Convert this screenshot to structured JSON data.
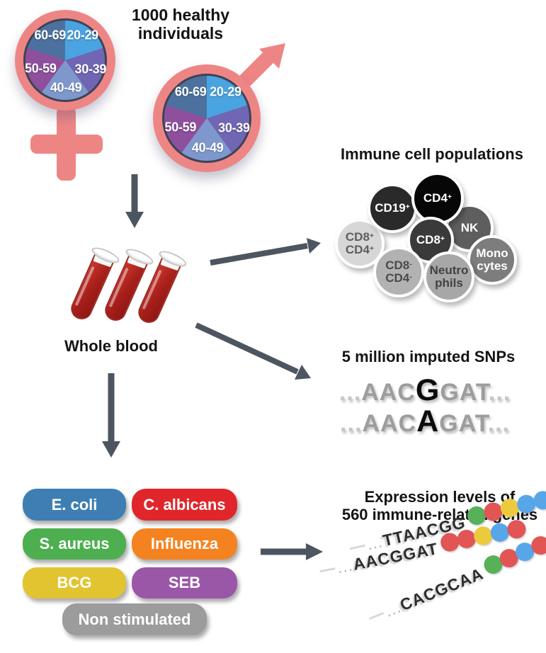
{
  "cohort": {
    "title_line1": "1000 healthy",
    "title_line2": "individuals",
    "age_groups": [
      {
        "label": "20-29",
        "color": "#4aa4e1"
      },
      {
        "label": "30-39",
        "color": "#7166b3"
      },
      {
        "label": "40-49",
        "color": "#7e98ce"
      },
      {
        "label": "50-59",
        "color": "#8e4f9d"
      },
      {
        "label": "60-69",
        "color": "#4d719e"
      }
    ]
  },
  "whole_blood": {
    "label": "Whole blood"
  },
  "immune": {
    "title": "Immune cell populations",
    "cells": [
      {
        "id": "cd8p_cd4p",
        "lines": [
          "CD8+",
          "CD4+"
        ],
        "bg": "#d7d7d7",
        "fg": "#5e5e5e"
      },
      {
        "id": "cd19p",
        "lines": [
          "CD19+"
        ],
        "bg": "#2a2a2a",
        "fg": "#ffffff"
      },
      {
        "id": "nk",
        "lines": [
          "NK"
        ],
        "bg": "#5e5e5e",
        "fg": "#ffffff"
      },
      {
        "id": "cd4p",
        "lines": [
          "CD4+"
        ],
        "bg": "#070707",
        "fg": "#ffffff"
      },
      {
        "id": "cd8p",
        "lines": [
          "CD8+"
        ],
        "bg": "#3a3a3a",
        "fg": "#ffffff"
      },
      {
        "id": "mono",
        "lines": [
          "Mono",
          "cytes"
        ],
        "bg": "#7d7d7d",
        "fg": "#ffffff"
      },
      {
        "id": "cd8n_cd4n",
        "lines": [
          "CD8-",
          "CD4-"
        ],
        "bg": "#b2b2b2",
        "fg": "#4a4a4a"
      },
      {
        "id": "neutro",
        "lines": [
          "Neutro",
          "phils"
        ],
        "bg": "#a7a7a7",
        "fg": "#424242"
      }
    ]
  },
  "snps": {
    "title": "5 million imputed SNPs",
    "sequences": [
      {
        "dots_left": "...",
        "left": "AAC",
        "snp": "G",
        "right": "GAT",
        "dots_right": "..."
      },
      {
        "dots_left": "...",
        "left": "AAC",
        "snp": "A",
        "right": "GAT",
        "dots_right": "..."
      }
    ]
  },
  "stimuli": {
    "items": [
      {
        "label": "E. coli",
        "color": "#3e7eb3"
      },
      {
        "label": "C. albicans",
        "color": "#e0262b"
      },
      {
        "label": "S. aureus",
        "color": "#4daf50"
      },
      {
        "label": "Influenza",
        "color": "#f58220"
      },
      {
        "label": "BCG",
        "color": "#e2c431"
      },
      {
        "label": "SEB",
        "color": "#9a57a8"
      },
      {
        "label": "Non stimulated",
        "color": "#9c9c9c"
      }
    ]
  },
  "expression": {
    "title_line1": "Expression levels of",
    "title_line2": "560 immune-related genes",
    "dot_palette": {
      "green": "#58b158",
      "red": "#e25555",
      "yellow": "#ecca3e",
      "blue": "#58a6ea"
    },
    "strands": [
      {
        "prefix": "...",
        "sequence": "TTAACGG",
        "dots": [
          "green",
          "red",
          "yellow",
          "blue",
          "blue"
        ]
      },
      {
        "prefix": "...",
        "sequence": "AACGGAT",
        "dots": [
          "red",
          "red",
          "yellow",
          "blue",
          "red"
        ]
      },
      {
        "prefix": "...",
        "sequence": "CACGCAA",
        "dots": [
          "green",
          "red",
          "blue",
          "red",
          "red"
        ]
      }
    ]
  },
  "colors": {
    "symbol_pink": "#ee8585",
    "arrow_gray": "#4d5560",
    "blood_red": "#a81f1a",
    "pie_border": "#3c4454"
  }
}
